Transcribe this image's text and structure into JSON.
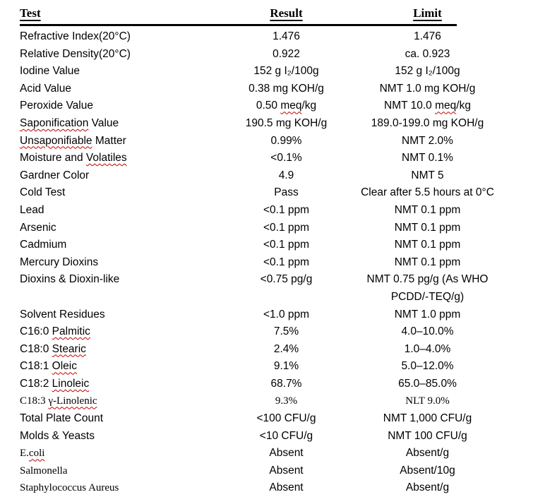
{
  "document": {
    "headers": {
      "test": "Test",
      "result": "Result",
      "limit": "Limit"
    },
    "squiggle_color": "#c00000",
    "rule_color": "#000000",
    "rows": [
      {
        "test": "Refractive Index(20°C)",
        "result": "1.476",
        "limit": "1.476"
      },
      {
        "test": "Relative Density(20°C)",
        "result": "0.922",
        "limit": "ca. 0.923"
      },
      {
        "test": "Iodine Value",
        "result": "152 g I₂/100g",
        "limit": "152 g I₂/100g"
      },
      {
        "test": "Acid Value",
        "result": "0.38 mg KOH/g",
        "limit": "NMT 1.0 mg KOH/g"
      },
      {
        "test": "Peroxide Value",
        "result": "0.50 meq/kg",
        "limit": "NMT 10.0 meq/kg",
        "result_misspelled": "meq",
        "limit_misspelled": "meq"
      },
      {
        "test": "Saponification Value",
        "result": "190.5 mg KOH/g",
        "limit": "189.0-199.0 mg KOH/g",
        "test_misspelled": "Saponification"
      },
      {
        "test": "Unsaponifiable Matter",
        "result": "0.99%",
        "limit": "NMT 2.0%",
        "test_misspelled": "Unsaponifiable"
      },
      {
        "test": "Moisture and Volatiles",
        "result": "<0.1%",
        "limit": "NMT 0.1%",
        "test_misspelled": "Volatiles"
      },
      {
        "test": "Gardner Color",
        "result": "4.9",
        "limit": "NMT 5"
      },
      {
        "test": "Cold Test",
        "result": "Pass",
        "limit": "Clear after 5.5 hours at 0°C"
      },
      {
        "test": "Lead",
        "result": "<0.1 ppm",
        "limit": "NMT 0.1 ppm"
      },
      {
        "test": "Arsenic",
        "result": "<0.1 ppm",
        "limit": "NMT 0.1 ppm"
      },
      {
        "test": "Cadmium",
        "result": "<0.1 ppm",
        "limit": "NMT 0.1 ppm"
      },
      {
        "test": "Mercury Dioxins",
        "result": "<0.1 ppm",
        "limit": "NMT 0.1 ppm"
      },
      {
        "test": "Dioxins & Dioxin-like",
        "result": "<0.75 pg/g",
        "limit": "NMT 0.75 pg/g (As WHO\nPCDD/-TEQ/g)"
      },
      {
        "test": "Solvent Residues",
        "result": "<1.0 ppm",
        "limit": "NMT 1.0 ppm"
      },
      {
        "test": "C16:0 Palmitic",
        "result": "7.5%",
        "limit": "4.0–10.0%",
        "test_misspelled": "Palmitic"
      },
      {
        "test": "C18:0 Stearic",
        "result": "2.4%",
        "limit": "1.0–4.0%",
        "test_misspelled": "Stearic"
      },
      {
        "test": "C18:1 Oleic",
        "result": "9.1%",
        "limit": "5.0–12.0%",
        "test_misspelled": "Oleic"
      },
      {
        "test": "C18:2 Linoleic",
        "result": "68.7%",
        "limit": "65.0–85.0%",
        "test_misspelled": "Linoleic"
      },
      {
        "test": "C18:3 γ-Linolenic",
        "result": "9.3%",
        "limit": "NLT 9.0%",
        "test_misspelled": "γ-Linolenic",
        "serif": true
      },
      {
        "test": "Total Plate Count",
        "result": "<100 CFU/g",
        "limit": "NMT 1,000 CFU/g"
      },
      {
        "test": "Molds & Yeasts",
        "result": "<10 CFU/g",
        "limit": "NMT 100 CFU/g"
      },
      {
        "test": "E.coli",
        "result": "Absent",
        "limit": "Absent/g",
        "test_misspelled": "coli",
        "test_serif": true
      },
      {
        "test": "Salmonella",
        "result": "Absent",
        "limit": "Absent/10g",
        "test_serif": true
      },
      {
        "test": "Staphylococcus Aureus",
        "result": "Absent",
        "limit": "Absent/g",
        "test_serif": true
      }
    ]
  }
}
